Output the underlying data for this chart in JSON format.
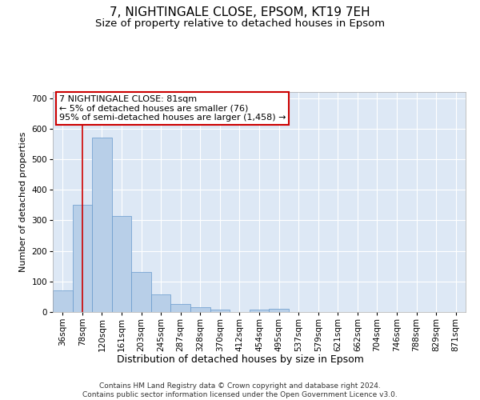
{
  "title1": "7, NIGHTINGALE CLOSE, EPSOM, KT19 7EH",
  "title2": "Size of property relative to detached houses in Epsom",
  "xlabel": "Distribution of detached houses by size in Epsom",
  "ylabel": "Number of detached properties",
  "bar_labels": [
    "36sqm",
    "78sqm",
    "120sqm",
    "161sqm",
    "203sqm",
    "245sqm",
    "287sqm",
    "328sqm",
    "370sqm",
    "412sqm",
    "454sqm",
    "495sqm",
    "537sqm",
    "579sqm",
    "621sqm",
    "662sqm",
    "704sqm",
    "746sqm",
    "788sqm",
    "829sqm",
    "871sqm"
  ],
  "bar_values": [
    70,
    352,
    570,
    315,
    130,
    57,
    25,
    15,
    8,
    0,
    9,
    10,
    0,
    0,
    0,
    0,
    0,
    0,
    0,
    0,
    0
  ],
  "bar_color": "#b8cfe8",
  "bar_edge_color": "#6699cc",
  "background_color": "#dde8f5",
  "grid_color": "#ffffff",
  "property_line_x": 1.0,
  "property_line_color": "#cc0000",
  "annotation_text": "7 NIGHTINGALE CLOSE: 81sqm\n← 5% of detached houses are smaller (76)\n95% of semi-detached houses are larger (1,458) →",
  "annotation_box_color": "#cc0000",
  "ylim": [
    0,
    720
  ],
  "yticks": [
    0,
    100,
    200,
    300,
    400,
    500,
    600,
    700
  ],
  "footer": "Contains HM Land Registry data © Crown copyright and database right 2024.\nContains public sector information licensed under the Open Government Licence v3.0.",
  "title1_fontsize": 11,
  "title2_fontsize": 9.5,
  "xlabel_fontsize": 9,
  "ylabel_fontsize": 8,
  "tick_fontsize": 7.5,
  "annotation_fontsize": 8,
  "footer_fontsize": 6.5
}
